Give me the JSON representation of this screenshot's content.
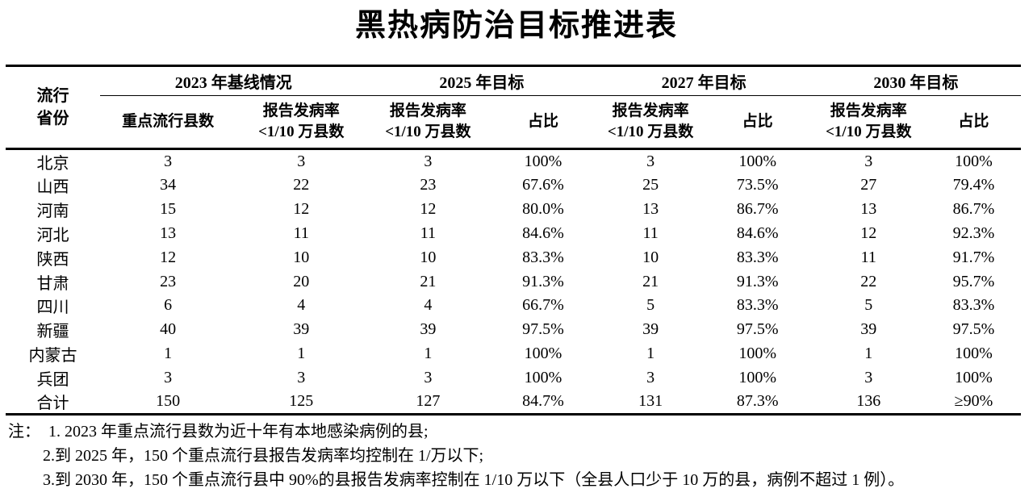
{
  "page": {
    "background": "#ffffff",
    "ink": "#000000"
  },
  "title": "黑热病防治目标推进表",
  "table": {
    "corner_header": {
      "line1": "流行",
      "line2": "省份"
    },
    "group_headers": [
      {
        "label": "2023 年基线情况"
      },
      {
        "label": "2025 年目标"
      },
      {
        "label": "2027 年目标"
      },
      {
        "label": "2030 年目标"
      }
    ],
    "sub_headers": [
      {
        "line1": "重点流行县数",
        "line2": ""
      },
      {
        "line1": "报告发病率",
        "line2": "<1/10 万县数"
      },
      {
        "line1": "报告发病率",
        "line2": "<1/10 万县数"
      },
      {
        "line1": "占比",
        "line2": ""
      },
      {
        "line1": "报告发病率",
        "line2": "<1/10 万县数"
      },
      {
        "line1": "占比",
        "line2": ""
      },
      {
        "line1": "报告发病率",
        "line2": "<1/10 万县数"
      },
      {
        "line1": "占比",
        "line2": ""
      }
    ],
    "rows": [
      {
        "province": "北京",
        "values": [
          "3",
          "3",
          "3",
          "100%",
          "3",
          "100%",
          "3",
          "100%"
        ]
      },
      {
        "province": "山西",
        "values": [
          "34",
          "22",
          "23",
          "67.6%",
          "25",
          "73.5%",
          "27",
          "79.4%"
        ]
      },
      {
        "province": "河南",
        "values": [
          "15",
          "12",
          "12",
          "80.0%",
          "13",
          "86.7%",
          "13",
          "86.7%"
        ]
      },
      {
        "province": "河北",
        "values": [
          "13",
          "11",
          "11",
          "84.6%",
          "11",
          "84.6%",
          "12",
          "92.3%"
        ]
      },
      {
        "province": "陕西",
        "values": [
          "12",
          "10",
          "10",
          "83.3%",
          "10",
          "83.3%",
          "11",
          "91.7%"
        ]
      },
      {
        "province": "甘肃",
        "values": [
          "23",
          "20",
          "21",
          "91.3%",
          "21",
          "91.3%",
          "22",
          "95.7%"
        ]
      },
      {
        "province": "四川",
        "values": [
          "6",
          "4",
          "4",
          "66.7%",
          "5",
          "83.3%",
          "5",
          "83.3%"
        ]
      },
      {
        "province": "新疆",
        "values": [
          "40",
          "39",
          "39",
          "97.5%",
          "39",
          "97.5%",
          "39",
          "97.5%"
        ]
      },
      {
        "province": "内蒙古",
        "values": [
          "1",
          "1",
          "1",
          "100%",
          "1",
          "100%",
          "1",
          "100%"
        ]
      },
      {
        "province": "兵团",
        "values": [
          "3",
          "3",
          "3",
          "100%",
          "3",
          "100%",
          "3",
          "100%"
        ]
      },
      {
        "province": "合计",
        "values": [
          "150",
          "125",
          "127",
          "84.7%",
          "131",
          "87.3%",
          "136",
          "≥90%"
        ]
      }
    ]
  },
  "notes": {
    "label": "注：",
    "items": [
      "1. 2023 年重点流行县数为近十年有本地感染病例的县;",
      "2.到 2025 年，150 个重点流行县报告发病率均控制在 1/万以下;",
      "3.到 2030 年，150 个重点流行县中 90%的县报告发病率控制在 1/10 万以下（全县人口少于 10 万的县，病例不超过 1 例）。"
    ]
  }
}
